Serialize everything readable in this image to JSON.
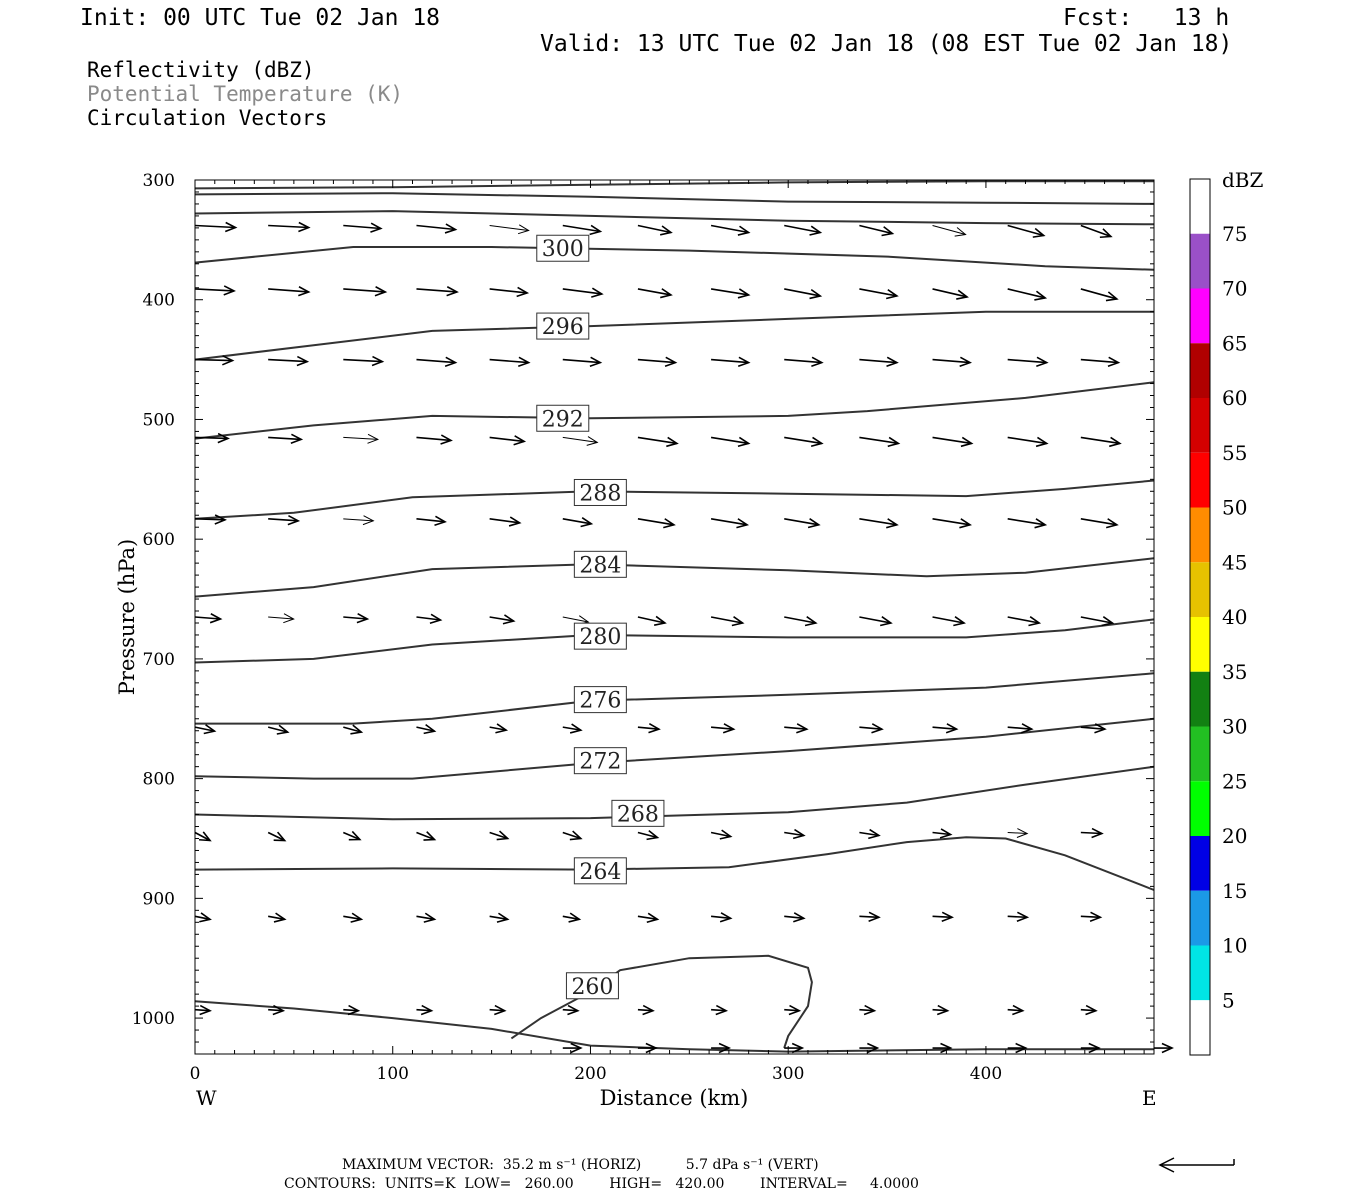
{
  "header": {
    "init": "Init: 00 UTC Tue 02 Jan 18",
    "fcst": "Fcst:   13 h",
    "valid": "Valid: 13 UTC Tue 02 Jan 18 (08 EST Tue 02 Jan 18)"
  },
  "fields": {
    "reflectivity": "Reflectivity (dBZ)",
    "potential_temperature": "Potential Temperature (K)",
    "circulation": "Circulation Vectors"
  },
  "footer": {
    "max_vector": "MAXIMUM VECTOR:  35.2 m s⁻¹ (HORIZ)          5.7 dPa s⁻¹ (VERT)",
    "contours": "CONTOURS:  UNITS=K  LOW=   260.00        HIGH=   420.00        INTERVAL=     4.0000"
  },
  "colors": {
    "contour": "#333333",
    "vector": "#000000",
    "frame": "#000000"
  },
  "chart_data": {
    "type": "contour",
    "xlabel": "Distance (km)",
    "ylabel": "Pressure (hPa)",
    "xlim": [
      0,
      485
    ],
    "ylim": [
      1030,
      300
    ],
    "x_ticks": [
      0,
      100,
      200,
      300,
      400
    ],
    "y_ticks": [
      300,
      400,
      500,
      600,
      700,
      800,
      900,
      1000
    ],
    "side_labels": {
      "left": "W",
      "right": "E"
    },
    "colorbar": {
      "label": "dBZ",
      "ticks": [
        5,
        10,
        15,
        20,
        25,
        30,
        35,
        40,
        45,
        50,
        55,
        60,
        65,
        70,
        75
      ],
      "colors": [
        "#ffffff",
        "#00e5e5",
        "#1b99e6",
        "#0000e5",
        "#00ff00",
        "#22c022",
        "#128012",
        "#ffff00",
        "#e6c200",
        "#ff8c00",
        "#ff0000",
        "#d40000",
        "#b00000",
        "#ff00ff",
        "#9a50c8",
        "#ffffff"
      ]
    },
    "contours": [
      {
        "name": "",
        "points": [
          [
            0,
            307
          ],
          [
            100,
            306
          ],
          [
            200,
            304
          ],
          [
            300,
            302
          ],
          [
            400,
            301
          ],
          [
            485,
            301
          ]
        ]
      },
      {
        "name": "",
        "points": [
          [
            0,
            312
          ],
          [
            100,
            311
          ],
          [
            200,
            314
          ],
          [
            300,
            318
          ],
          [
            400,
            319
          ],
          [
            485,
            320
          ]
        ]
      },
      {
        "name": "",
        "points": [
          [
            0,
            328
          ],
          [
            100,
            326
          ],
          [
            200,
            330
          ],
          [
            300,
            334
          ],
          [
            400,
            336
          ],
          [
            485,
            337
          ]
        ]
      },
      {
        "name": "300",
        "label_at": [
          186,
          357
        ],
        "points": [
          [
            0,
            369
          ],
          [
            80,
            356
          ],
          [
            150,
            356
          ],
          [
            250,
            359
          ],
          [
            350,
            364
          ],
          [
            430,
            372
          ],
          [
            485,
            375
          ]
        ]
      },
      {
        "name": "296",
        "label_at": [
          186,
          422
        ],
        "points": [
          [
            0,
            450
          ],
          [
            60,
            438
          ],
          [
            120,
            426
          ],
          [
            200,
            422
          ],
          [
            300,
            416
          ],
          [
            400,
            410
          ],
          [
            485,
            410
          ]
        ]
      },
      {
        "name": "292",
        "label_at": [
          186,
          499
        ],
        "points": [
          [
            0,
            516
          ],
          [
            60,
            505
          ],
          [
            120,
            497
          ],
          [
            200,
            499
          ],
          [
            300,
            497
          ],
          [
            340,
            493
          ],
          [
            420,
            482
          ],
          [
            485,
            469
          ]
        ]
      },
      {
        "name": "288",
        "label_at": [
          205,
          561
        ],
        "points": [
          [
            0,
            583
          ],
          [
            50,
            578
          ],
          [
            110,
            565
          ],
          [
            200,
            560
          ],
          [
            300,
            562
          ],
          [
            390,
            564
          ],
          [
            440,
            558
          ],
          [
            485,
            551
          ]
        ]
      },
      {
        "name": "284",
        "label_at": [
          205,
          621
        ],
        "points": [
          [
            0,
            648
          ],
          [
            60,
            640
          ],
          [
            120,
            625
          ],
          [
            200,
            621
          ],
          [
            300,
            626
          ],
          [
            370,
            631
          ],
          [
            420,
            628
          ],
          [
            485,
            616
          ]
        ]
      },
      {
        "name": "280",
        "label_at": [
          205,
          681
        ],
        "points": [
          [
            0,
            703
          ],
          [
            60,
            700
          ],
          [
            120,
            688
          ],
          [
            200,
            680
          ],
          [
            300,
            682
          ],
          [
            390,
            682
          ],
          [
            440,
            676
          ],
          [
            485,
            667
          ]
        ]
      },
      {
        "name": "276",
        "label_at": [
          205,
          734
        ],
        "points": [
          [
            0,
            754
          ],
          [
            80,
            754
          ],
          [
            120,
            750
          ],
          [
            200,
            735
          ],
          [
            300,
            730
          ],
          [
            400,
            724
          ],
          [
            485,
            712
          ]
        ]
      },
      {
        "name": "272",
        "label_at": [
          205,
          785
        ],
        "points": [
          [
            0,
            798
          ],
          [
            60,
            800
          ],
          [
            110,
            800
          ],
          [
            200,
            787
          ],
          [
            300,
            777
          ],
          [
            400,
            765
          ],
          [
            485,
            750
          ]
        ]
      },
      {
        "name": "268",
        "label_at": [
          224,
          829
        ],
        "points": [
          [
            0,
            830
          ],
          [
            100,
            834
          ],
          [
            200,
            833
          ],
          [
            300,
            828
          ],
          [
            360,
            820
          ],
          [
            420,
            805
          ],
          [
            485,
            790
          ]
        ]
      },
      {
        "name": "264",
        "label_at": [
          205,
          877
        ],
        "points": [
          [
            0,
            876
          ],
          [
            100,
            875
          ],
          [
            200,
            876
          ],
          [
            270,
            874
          ],
          [
            320,
            863
          ],
          [
            360,
            853
          ],
          [
            390,
            849
          ],
          [
            410,
            850
          ],
          [
            440,
            864
          ],
          [
            485,
            893
          ]
        ]
      },
      {
        "name": "260",
        "label_at": [
          201,
          973
        ],
        "points": [
          [
            160,
            1017
          ],
          [
            175,
            1000
          ],
          [
            200,
            978
          ],
          [
            215,
            960
          ],
          [
            250,
            950
          ],
          [
            290,
            948
          ],
          [
            310,
            958
          ],
          [
            312,
            970
          ],
          [
            310,
            990
          ],
          [
            300,
            1015
          ],
          [
            298,
            1025
          ]
        ]
      },
      {
        "name": "",
        "points": [
          [
            0,
            986
          ],
          [
            50,
            992
          ],
          [
            100,
            1000
          ],
          [
            150,
            1009
          ],
          [
            200,
            1023
          ],
          [
            250,
            1026
          ],
          [
            300,
            1028
          ],
          [
            400,
            1026
          ],
          [
            485,
            1026
          ]
        ]
      }
    ],
    "vector_rows": [
      {
        "y": 338,
        "x": [
          0,
          37,
          75,
          112,
          149,
          186,
          224,
          261,
          298,
          336,
          373,
          411,
          448
        ],
        "u": [
          27,
          27,
          25,
          26,
          26,
          25,
          22,
          25,
          24,
          22,
          22,
          24,
          20
        ],
        "w": [
          2,
          2,
          3,
          4,
          5,
          6,
          7,
          7,
          7,
          8,
          9,
          10,
          11
        ],
        "arrowhead": [
          1,
          1,
          1,
          1,
          0,
          1,
          1,
          1,
          1,
          1,
          0,
          1,
          1
        ]
      },
      {
        "y": 391,
        "x": [
          0,
          37,
          75,
          112,
          149,
          186,
          224,
          261,
          298,
          336,
          373,
          411,
          448
        ],
        "u": [
          26,
          27,
          28,
          27,
          25,
          26,
          22,
          25,
          24,
          25,
          23,
          25,
          24
        ],
        "w": [
          2,
          3,
          3,
          3,
          4,
          5,
          6,
          6,
          7,
          7,
          8,
          9,
          10
        ]
      },
      {
        "y": 450,
        "x": [
          0,
          37,
          75,
          112,
          149,
          186,
          224,
          261,
          298,
          336,
          373,
          411,
          448
        ],
        "u": [
          25,
          26,
          26,
          26,
          26,
          25,
          25,
          25,
          25,
          25,
          25,
          26,
          25
        ],
        "w": [
          1,
          2,
          2,
          3,
          3,
          3,
          3,
          3,
          3,
          3,
          3,
          3,
          3
        ]
      },
      {
        "y": 515,
        "x": [
          0,
          37,
          75,
          112,
          149,
          186,
          224,
          261,
          298,
          336,
          373,
          411,
          448
        ],
        "u": [
          22,
          22,
          23,
          23,
          23,
          23,
          26,
          25,
          25,
          26,
          26,
          26,
          26
        ],
        "w": [
          1,
          2,
          2,
          3,
          4,
          5,
          6,
          6,
          6,
          6,
          6,
          6,
          6
        ],
        "arrowhead": [
          1,
          1,
          0,
          1,
          1,
          0,
          1,
          1,
          1,
          1,
          1,
          1,
          1
        ]
      },
      {
        "y": 583,
        "x": [
          0,
          37,
          75,
          112,
          149,
          186,
          224,
          261,
          298,
          336,
          373,
          411,
          448
        ],
        "u": [
          20,
          20,
          20,
          19,
          20,
          19,
          24,
          24,
          23,
          25,
          25,
          25,
          24
        ],
        "w": [
          1,
          2,
          2,
          3,
          4,
          5,
          6,
          6,
          6,
          6,
          6,
          6,
          6
        ],
        "arrowhead": [
          1,
          1,
          0,
          1,
          1,
          1,
          1,
          1,
          1,
          1,
          1,
          1,
          1
        ]
      },
      {
        "y": 665,
        "x": [
          0,
          37,
          75,
          112,
          149,
          186,
          224,
          261,
          298,
          336,
          373,
          411,
          448
        ],
        "u": [
          17,
          17,
          16,
          16,
          16,
          17,
          18,
          21,
          21,
          21,
          21,
          21,
          21
        ],
        "w": [
          2,
          2,
          2,
          3,
          4,
          5,
          6,
          6,
          6,
          6,
          6,
          6,
          6
        ],
        "arrowhead": [
          1,
          0,
          1,
          1,
          1,
          0,
          1,
          1,
          1,
          1,
          1,
          1,
          1
        ]
      },
      {
        "y": 757,
        "x": [
          0,
          37,
          75,
          112,
          149,
          186,
          224,
          261,
          298,
          336,
          373,
          411,
          448
        ],
        "u": [
          13,
          13,
          12,
          12,
          11,
          12,
          14,
          15,
          15,
          15,
          16,
          16,
          16
        ],
        "w": [
          4,
          5,
          5,
          4,
          3,
          3,
          2,
          2,
          2,
          2,
          2,
          2,
          2
        ]
      },
      {
        "y": 845,
        "x": [
          0,
          37,
          75,
          112,
          149,
          186,
          224,
          261,
          298,
          336,
          373,
          411,
          448
        ],
        "u": [
          10,
          11,
          11,
          12,
          12,
          12,
          13,
          13,
          13,
          13,
          12,
          13,
          14
        ],
        "w": [
          8,
          8,
          7,
          7,
          6,
          6,
          5,
          4,
          3,
          3,
          2,
          1,
          1
        ],
        "arrowhead": [
          1,
          1,
          1,
          1,
          1,
          1,
          1,
          1,
          1,
          1,
          1,
          0,
          1
        ]
      },
      {
        "y": 915,
        "x": [
          0,
          37,
          75,
          112,
          149,
          186,
          224,
          261,
          298,
          336,
          373,
          411,
          448
        ],
        "u": [
          10,
          11,
          12,
          12,
          12,
          11,
          13,
          13,
          13,
          13,
          13,
          13,
          13
        ],
        "w": [
          3,
          3,
          3,
          3,
          3,
          3,
          3,
          2,
          2,
          1,
          1,
          1,
          1
        ]
      },
      {
        "y": 993,
        "x": [
          0,
          37,
          75,
          112,
          149,
          186,
          224,
          261,
          298,
          336,
          373,
          411,
          448
        ],
        "u": [
          10,
          10,
          10,
          10,
          10,
          10,
          10,
          10,
          10,
          10,
          10,
          10,
          10
        ],
        "w": [
          1,
          1,
          1,
          1,
          1,
          1,
          1,
          1,
          1,
          1,
          1,
          1,
          1
        ]
      },
      {
        "y": 1025,
        "x": [
          186,
          224,
          261,
          298,
          336,
          373,
          411,
          448,
          485
        ],
        "u": [
          12,
          12,
          12,
          12,
          12,
          12,
          12,
          12,
          12
        ],
        "w": [
          0,
          0,
          0,
          0,
          0,
          0,
          0,
          0,
          0
        ]
      }
    ],
    "reference_vector": "←"
  }
}
